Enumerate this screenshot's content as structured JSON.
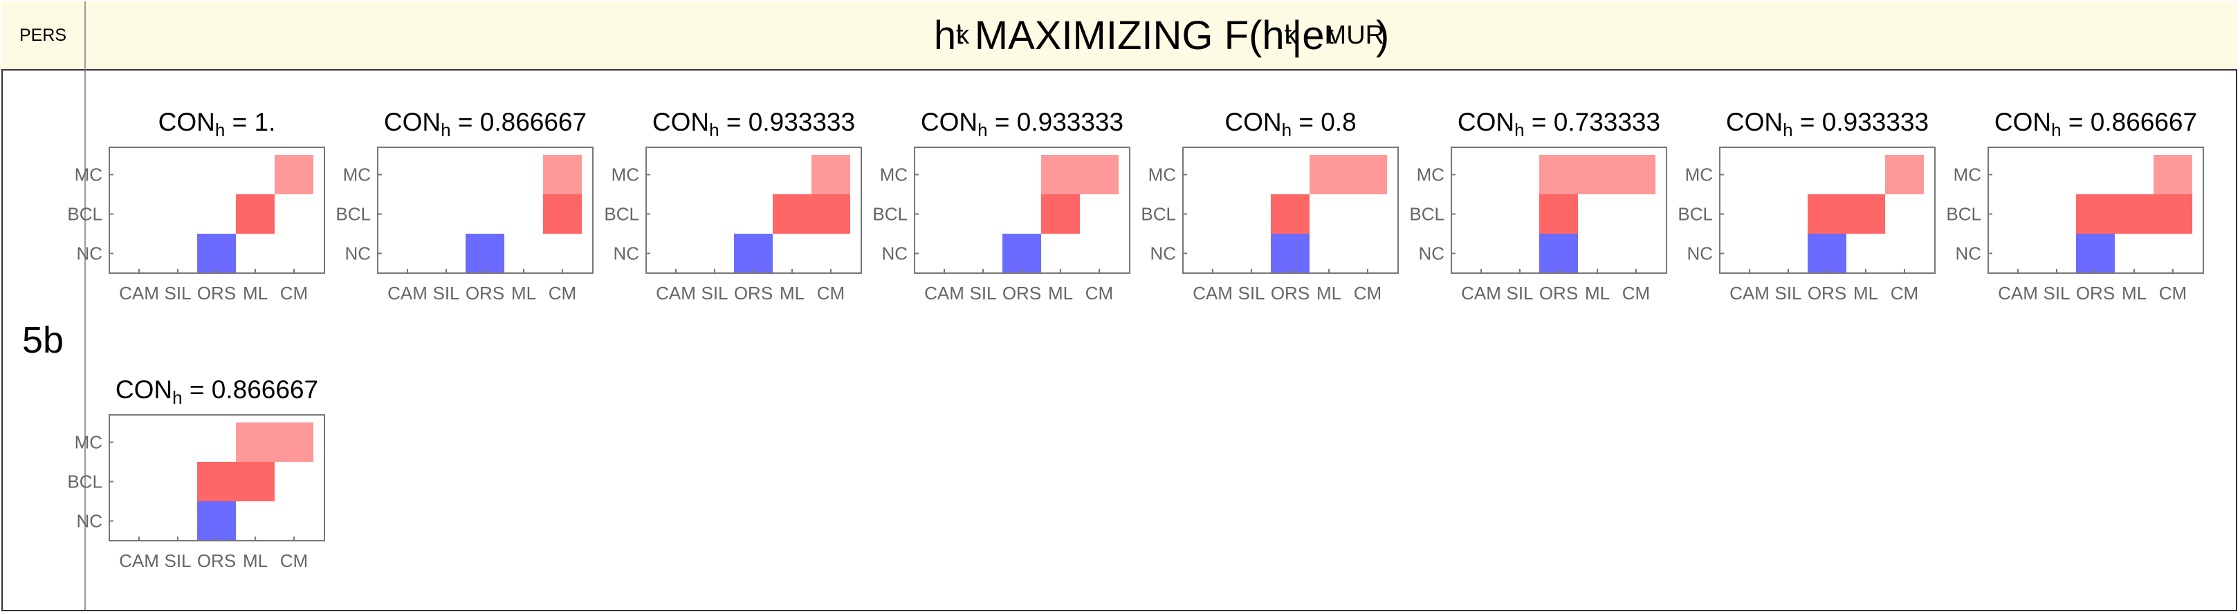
{
  "header": {
    "left_label": "PERS",
    "title": {
      "h": "h",
      "h_sup": "t",
      "h_sub": "k",
      "mid": " MAXIMIZING F(",
      "h2": "h",
      "h2_sup": "t",
      "h2_sub": "k",
      "bar": "|e",
      "e_sup": "t",
      "e_sub": "MUR",
      "close": ")"
    }
  },
  "row": {
    "label": "5b"
  },
  "colors": {
    "NC": "#6b6bff",
    "BCL": "#ff6666",
    "MC": "#ff9999",
    "axis": "#777777",
    "tick_text": "#666666"
  },
  "chart_data": {
    "type": "heatmap",
    "title_prefix": "CON",
    "title_sub": "h",
    "x_categories": [
      "CAM",
      "SIL",
      "ORS",
      "ML",
      "CM"
    ],
    "y_categories": [
      "NC",
      "BCL",
      "MC"
    ],
    "panels": [
      {
        "con_value": "1.",
        "filled": {
          "NC": [
            "ORS"
          ],
          "BCL": [
            "ML"
          ],
          "MC": [
            "CM"
          ]
        }
      },
      {
        "con_value": "0.866667",
        "filled": {
          "NC": [
            "ORS"
          ],
          "BCL": [
            "CM"
          ],
          "MC": [
            "CM"
          ]
        }
      },
      {
        "con_value": "0.933333",
        "filled": {
          "NC": [
            "ORS"
          ],
          "BCL": [
            "ML",
            "CM"
          ],
          "MC": [
            "CM"
          ]
        }
      },
      {
        "con_value": "0.933333",
        "filled": {
          "NC": [
            "ORS"
          ],
          "BCL": [
            "ML"
          ],
          "MC": [
            "ML",
            "CM"
          ]
        }
      },
      {
        "con_value": "0.8",
        "filled": {
          "NC": [
            "ORS"
          ],
          "BCL": [
            "ORS"
          ],
          "MC": [
            "ML",
            "CM"
          ]
        }
      },
      {
        "con_value": "0.733333",
        "filled": {
          "NC": [
            "ORS"
          ],
          "BCL": [
            "ORS"
          ],
          "MC": [
            "ORS",
            "ML",
            "CM"
          ]
        }
      },
      {
        "con_value": "0.933333",
        "filled": {
          "NC": [
            "ORS"
          ],
          "BCL": [
            "ORS",
            "ML"
          ],
          "MC": [
            "CM"
          ]
        }
      },
      {
        "con_value": "0.866667",
        "filled": {
          "NC": [
            "ORS"
          ],
          "BCL": [
            "ORS",
            "ML",
            "CM"
          ],
          "MC": [
            "CM"
          ]
        }
      },
      {
        "con_value": "0.866667",
        "filled": {
          "NC": [
            "ORS"
          ],
          "BCL": [
            "ORS",
            "ML"
          ],
          "MC": [
            "ML",
            "CM"
          ]
        }
      }
    ]
  }
}
